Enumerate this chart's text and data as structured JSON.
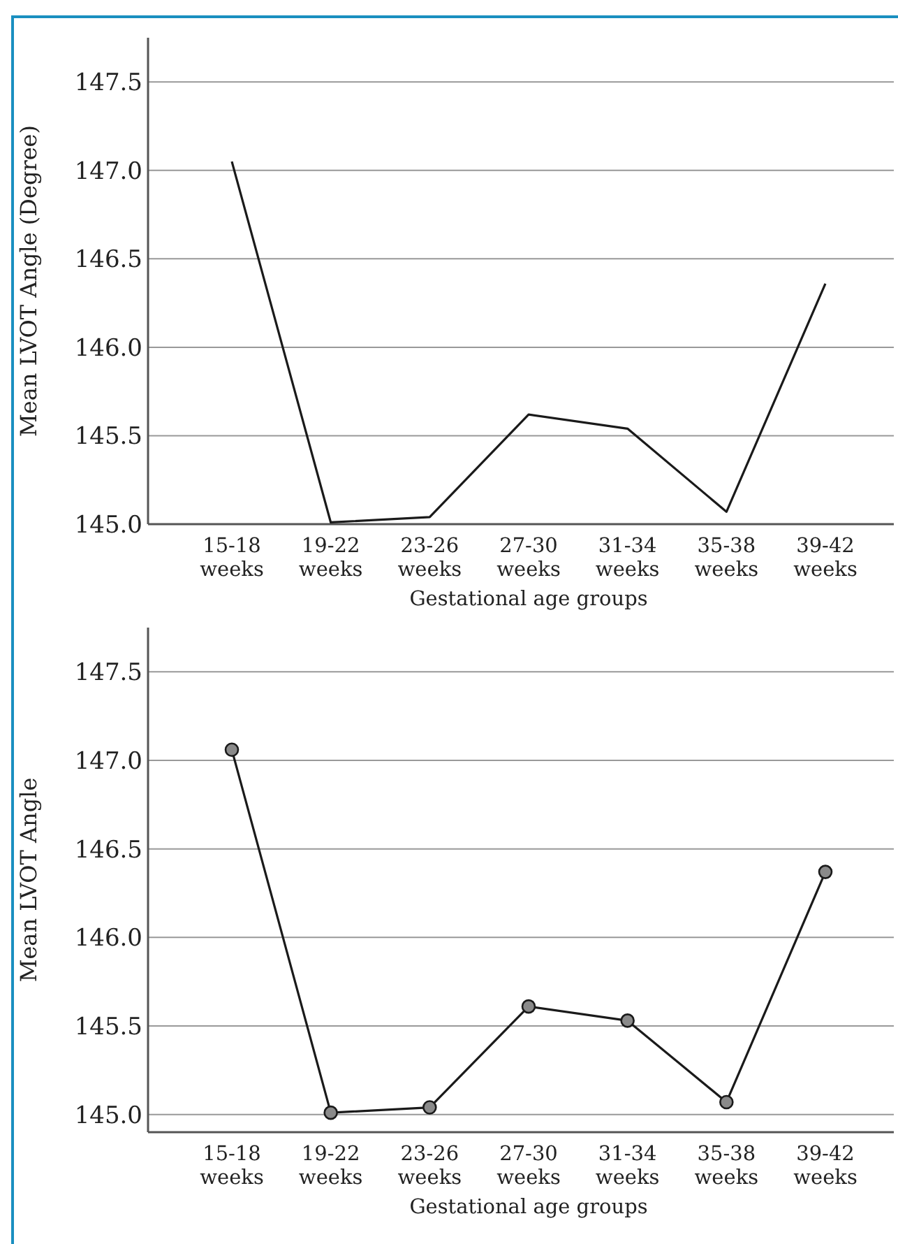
{
  "chart_data": [
    {
      "type": "line",
      "xlabel": "Gestational age groups",
      "ylabel": "Mean LVOT Angle (Degree)",
      "categories": [
        "15-18\nweeks",
        "19-22\nweeks",
        "23-26\nweeks",
        "27-30\nweeks",
        "31-34\nweeks",
        "35-38\nweeks",
        "39-42\nweeks"
      ],
      "series": [
        {
          "color": "#1a1a1a",
          "values": [
            147.05,
            145.01,
            145.04,
            145.62,
            145.54,
            145.07,
            146.36
          ]
        }
      ],
      "ylim": [
        145,
        147.75
      ],
      "yticks": [
        {
          "value": 145,
          "label": "145.0"
        },
        147.5,
        {
          "value": 147,
          "label": "147.0"
        },
        146.5,
        {
          "value": 146,
          "label": "146.0"
        },
        145.5
      ],
      "grid": "y",
      "marker": "none",
      "line_style": "solid"
    },
    {
      "type": "line",
      "xlabel": "Gestational age groups",
      "ylabel": "Mean LVOT Angle",
      "categories": [
        "15-18\nweeks",
        "19-22\nweeks",
        "23-26\nweeks",
        "27-30\nweeks",
        "31-34\nweeks",
        "35-38\nweeks",
        "39-42\nweeks"
      ],
      "series": [
        {
          "color": "#1a1a1a",
          "values": [
            147.06,
            145.01,
            145.04,
            145.61,
            145.53,
            145.07,
            146.37
          ]
        }
      ],
      "ylim": [
        144.9,
        147.75
      ],
      "yticks": [
        {
          "value": 145,
          "label": "145.0"
        },
        145.5,
        {
          "value": 146,
          "label": "146.0"
        },
        146.5,
        {
          "value": 147,
          "label": "147.0"
        },
        147.5
      ],
      "grid": "y",
      "marker": "circle",
      "line_style": "solid"
    }
  ]
}
